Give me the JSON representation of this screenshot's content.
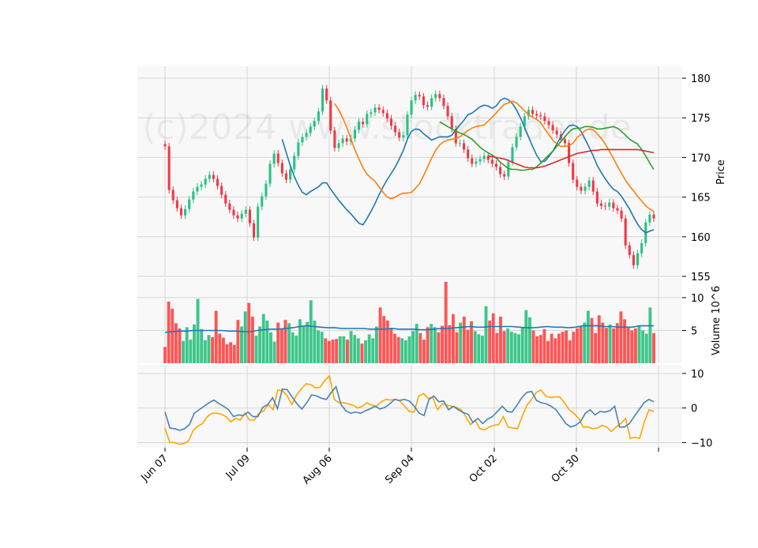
{
  "chart_data": {
    "type": "candlestick",
    "watermark": "(c)2024 www.stocktrader.de",
    "x_tick_labels": [
      "Jun 07",
      "Jul 09",
      "Aug 06",
      "Sep 04",
      "Oct 02",
      "Oct 30"
    ],
    "price_panel": {
      "ylabel": "Price",
      "ylim": [
        155,
        181.5
      ],
      "yticks": [
        155,
        160,
        165,
        170,
        175,
        180
      ],
      "up_color": "#26c281",
      "down_color": "#f23645",
      "close": [
        171.4,
        165.9,
        164.6,
        163.6,
        162.7,
        163.5,
        164.7,
        165.7,
        166.3,
        166.6,
        167.3,
        167.8,
        167.3,
        166.4,
        165.3,
        164.2,
        163.4,
        162.7,
        162.3,
        162.9,
        163.4,
        161.7,
        159.9,
        163.8,
        165.1,
        166.7,
        169.2,
        170.5,
        169.3,
        168.0,
        167.2,
        168.5,
        170.2,
        171.9,
        172.6,
        173.1,
        173.9,
        174.6,
        175.8,
        178.7,
        177.2,
        173.4,
        171.2,
        171.8,
        172.4,
        172.0,
        172.4,
        173.5,
        174.5,
        174.2,
        175.5,
        175.7,
        176.3,
        176.0,
        175.6,
        174.9,
        174.0,
        173.2,
        172.5,
        172.8,
        175.4,
        177.2,
        177.9,
        177.7,
        176.6,
        176.4,
        177.5,
        178.0,
        177.5,
        176.5,
        175.2,
        173.6,
        171.8,
        171.8,
        171.0,
        169.9,
        169.2,
        169.5,
        169.8,
        170.2,
        169.7,
        169.2,
        168.8,
        167.9,
        167.6,
        169.4,
        171.3,
        172.6,
        173.9,
        175.2,
        176.0,
        175.5,
        175.3,
        175.2,
        174.6,
        174.1,
        173.4,
        172.9,
        172.3,
        171.8,
        169.3,
        167.2,
        166.3,
        165.8,
        166.3,
        167.1,
        165.7,
        164.2,
        163.9,
        163.8,
        164.3,
        163.6,
        163.3,
        162.3,
        158.9,
        157.7,
        156.4,
        157.9,
        159.2,
        161.8,
        162.8,
        162.3
      ],
      "ma_series": [
        {
          "color": "#1f77b4",
          "values": [
            172.3,
            170.6,
            169.0,
            167.6,
            166.5,
            165.6,
            165.3,
            165.7,
            166.0,
            166.3,
            166.8,
            166.8,
            166.0,
            165.3,
            164.6,
            164.0,
            163.4,
            162.9,
            162.3,
            161.7,
            161.5,
            162.3,
            163.2,
            164.2,
            165.3,
            166.3,
            167.2,
            168.0,
            168.8,
            169.8,
            170.9,
            172.3,
            173.3,
            173.6,
            173.5,
            173.0,
            172.6,
            172.2,
            172.4,
            172.6,
            172.6,
            172.6,
            172.8,
            173.5,
            174.1,
            174.7,
            175.4,
            175.6,
            176.0,
            176.4,
            176.6,
            176.5,
            176.2,
            176.5,
            177.2,
            177.5,
            177.3,
            176.8,
            176.0,
            175.0,
            173.8,
            172.6,
            171.4,
            170.3,
            169.5,
            169.5,
            170.1,
            170.8,
            171.7,
            172.6,
            173.4,
            174.0,
            174.1,
            173.9,
            173.3,
            172.3,
            171.3,
            170.2,
            169.0,
            168.1,
            167.3,
            166.6,
            166.0,
            165.7,
            165.1,
            164.3,
            163.5,
            162.5,
            161.6,
            160.9,
            160.5,
            160.7,
            160.9
          ]
        },
        {
          "color": "#ff7f0e",
          "values": [
            176.8,
            176.0,
            175.0,
            173.8,
            172.4,
            171.0,
            169.8,
            168.7,
            167.9,
            167.4,
            167.0,
            166.3,
            165.6,
            165.0,
            164.8,
            165.0,
            165.3,
            165.5,
            165.5,
            165.6,
            166.1,
            166.7,
            167.7,
            168.8,
            169.9,
            170.9,
            171.6,
            172.0,
            172.2,
            172.3,
            172.4,
            172.6,
            173.0,
            173.4,
            173.7,
            173.9,
            174.0,
            174.1,
            174.6,
            175.1,
            175.6,
            176.2,
            176.7,
            176.9,
            177.1,
            176.9,
            176.4,
            175.9,
            175.4,
            175.1,
            174.8,
            174.4,
            173.6,
            172.9,
            172.2,
            171.7,
            171.4,
            171.4,
            171.5,
            171.8,
            172.5,
            172.9,
            173.4,
            173.6,
            173.5,
            173.0,
            172.4,
            171.7,
            170.8,
            169.9,
            168.9,
            168.0,
            167.1,
            166.4,
            165.8,
            165.1,
            164.5,
            163.9,
            163.5,
            163.2
          ]
        },
        {
          "color": "#2ca02c",
          "values": [
            174.5,
            174.2,
            173.9,
            173.6,
            173.3,
            173.1,
            172.9,
            172.6,
            172.3,
            171.8,
            171.3,
            170.9,
            170.6,
            170.3,
            169.9,
            169.4,
            169.0,
            168.6,
            168.5,
            168.5,
            168.4,
            168.4,
            168.5,
            168.5,
            168.8,
            169.3,
            169.8,
            170.3,
            170.8,
            171.4,
            172.0,
            172.6,
            173.2,
            173.6,
            173.7,
            173.7,
            173.9,
            173.9,
            173.8,
            173.6,
            173.6,
            173.7,
            173.8,
            173.9,
            173.7,
            173.3,
            172.8,
            172.3,
            172.0,
            171.7,
            171.0,
            170.2,
            169.3,
            168.5
          ]
        },
        {
          "color": "#d62728",
          "values": [
            170.2,
            170.1,
            170.0,
            169.9,
            169.8,
            169.6,
            169.4,
            169.2,
            169.0,
            168.8,
            168.7,
            168.7,
            168.7,
            168.8,
            168.9,
            169.1,
            169.3,
            169.5,
            169.7,
            169.9,
            170.1,
            170.3,
            170.5,
            170.6,
            170.7,
            170.8,
            170.9,
            170.9,
            171.0,
            171.0,
            171.0,
            171.0,
            171.0,
            171.0,
            171.0,
            171.0,
            171.0,
            171.0,
            170.9,
            170.8,
            170.7,
            170.6
          ]
        }
      ]
    },
    "volume_panel": {
      "ylabel": "Volume  10^6",
      "ylim": [
        0,
        13
      ],
      "yticks": [
        5,
        10
      ],
      "volumes": [
        2.5,
        9.4,
        8.3,
        6.1,
        5.3,
        3.4,
        5.5,
        3.6,
        5.9,
        9.8,
        5.2,
        3.5,
        4.3,
        4.0,
        8.0,
        4.5,
        3.9,
        2.9,
        3.2,
        2.8,
        6.6,
        5.6,
        7.9,
        9.2,
        7.1,
        4.2,
        5.6,
        7.5,
        6.5,
        4.7,
        3.3,
        6.2,
        5.3,
        6.6,
        6.1,
        4.7,
        4.2,
        6.7,
        5.7,
        6.3,
        9.6,
        6.5,
        5.0,
        4.8,
        3.8,
        3.4,
        3.6,
        3.7,
        4.1,
        4.1,
        3.6,
        4.9,
        4.3,
        3.8,
        3.0,
        3.5,
        4.4,
        3.8,
        5.6,
        8.5,
        7.2,
        6.5,
        5.4,
        4.5,
        4.0,
        3.8,
        3.5,
        4.1,
        4.9,
        6.0,
        4.6,
        3.6,
        5.5,
        6.0,
        5.5,
        4.7,
        5.7,
        12.4,
        5.8,
        7.5,
        4.7,
        6.2,
        7.1,
        5.1,
        6.4,
        4.9,
        4.4,
        4.2,
        8.7,
        6.5,
        7.6,
        4.6,
        7.1,
        4.9,
        5.3,
        4.8,
        4.6,
        4.4,
        5.5,
        8.1,
        7.0,
        5.0,
        4.1,
        4.3,
        5.2,
        3.4,
        4.5,
        3.8,
        4.5,
        4.8,
        5.0,
        3.5,
        4.8,
        5.3,
        5.7,
        6.2,
        8.0,
        6.9,
        4.6,
        7.3,
        6.2,
        5.4,
        5.9,
        5.3,
        6.1,
        7.9,
        6.7,
        5.4,
        5.0,
        5.3,
        5.6,
        5.0,
        4.5,
        8.5,
        4.6
      ],
      "volume_ma": [
        4.7,
        4.8,
        4.9,
        4.9,
        5.0,
        5.0,
        5.0,
        5.0,
        5.0,
        4.9,
        4.9,
        4.8,
        4.8,
        5.0,
        5.1,
        5.2,
        5.2,
        5.3,
        5.4,
        5.6,
        5.7,
        5.6,
        5.5,
        5.4,
        5.4,
        5.3,
        5.3,
        5.3,
        5.3,
        5.2,
        5.2,
        5.2,
        5.3,
        5.2,
        5.2,
        5.2,
        5.1,
        5.1,
        5.2,
        5.3,
        5.3,
        5.4,
        5.5,
        5.6,
        5.5,
        5.5,
        5.6,
        5.6,
        5.6,
        5.6,
        5.5,
        5.4,
        5.4,
        5.5,
        5.6,
        5.5,
        5.5,
        5.4,
        5.5,
        5.7,
        5.7,
        5.7,
        5.6,
        5.6,
        5.5,
        5.5,
        5.5,
        5.7,
        5.7,
        5.7
      ]
    },
    "indicator_panel": {
      "ylim": [
        -11.5,
        12.5
      ],
      "yticks": [
        -10,
        0,
        10
      ],
      "series": [
        {
          "color": "#4682b4",
          "values": [
            -1.2,
            -5.8,
            -6.0,
            -6.5,
            -6.0,
            -4.8,
            -1.5,
            -0.5,
            0.5,
            1.5,
            2.3,
            1.3,
            0.5,
            -0.5,
            -2.5,
            -2.0,
            -2.2,
            -1.2,
            -2.5,
            -2.5,
            0.2,
            1.0,
            3.0,
            -0.2,
            5.5,
            5.3,
            3.2,
            1.2,
            -0.3,
            1.5,
            3.8,
            3.5,
            2.8,
            2.5,
            4.5,
            6.2,
            1.0,
            -0.8,
            -1.5,
            -1.2,
            -1.5,
            -0.8,
            -0.2,
            0.5,
            -0.3,
            0.2,
            1.2,
            2.5,
            2.2,
            2.5,
            2.0,
            0.5,
            -1.5,
            -2.2,
            2.5,
            3.5,
            1.8,
            2.0,
            -0.5,
            0.5,
            -0.5,
            -1.3,
            -1.8,
            -4.2,
            -3.0,
            -4.5,
            -3.2,
            -2.5,
            -1.0,
            0.5,
            -1.0,
            -1.2,
            0.8,
            3.0,
            4.5,
            4.8,
            2.2,
            1.5,
            1.2,
            0.5,
            -0.5,
            -2.5,
            -4.5,
            -5.5,
            -5.0,
            -4.0,
            -1.5,
            -0.5,
            -2.0,
            -1.0,
            -1.2,
            -0.8,
            0.5,
            -5.5,
            -5.5,
            -4.5,
            -2.5,
            -0.5,
            1.5,
            2.5,
            1.8
          ]
        },
        {
          "color": "#ffa500",
          "values": [
            -5.8,
            -10.0,
            -10.0,
            -10.5,
            -10.3,
            -9.5,
            -6.5,
            -5.2,
            -4.5,
            -2.5,
            -1.5,
            -1.5,
            -1.8,
            -2.5,
            -4.0,
            -3.0,
            -3.5,
            -1.5,
            -3.5,
            -3.5,
            -1.5,
            -0.8,
            1.0,
            -0.5,
            5.2,
            5.0,
            3.5,
            1.0,
            3.8,
            5.5,
            7.0,
            6.8,
            5.8,
            6.0,
            8.0,
            9.3,
            2.5,
            1.5,
            1.5,
            1.2,
            0.8,
            0.0,
            0.5,
            1.5,
            0.8,
            0.5,
            1.8,
            2.5,
            2.3,
            2.5,
            2.0,
            0.5,
            -1.0,
            -1.2,
            3.5,
            4.2,
            2.8,
            3.0,
            -0.5,
            1.2,
            0.8,
            0.5,
            0.2,
            -0.5,
            -2.5,
            -4.8,
            -3.5,
            -6.0,
            -6.3,
            -5.5,
            -5.0,
            -4.8,
            -2.5,
            -5.5,
            -5.8,
            -6.0,
            -2.5,
            0.8,
            2.5,
            4.5,
            5.2,
            3.5,
            3.0,
            3.2,
            3.2,
            1.5,
            -0.5,
            -1.5,
            -3.0,
            -5.5,
            -5.5,
            -6.0,
            -5.8,
            -5.0,
            -5.5,
            -6.8,
            -5.5,
            -4.5,
            -3.0,
            -8.8,
            -8.5,
            -8.8,
            -4.0,
            -0.5,
            -1.0
          ]
        }
      ]
    }
  }
}
